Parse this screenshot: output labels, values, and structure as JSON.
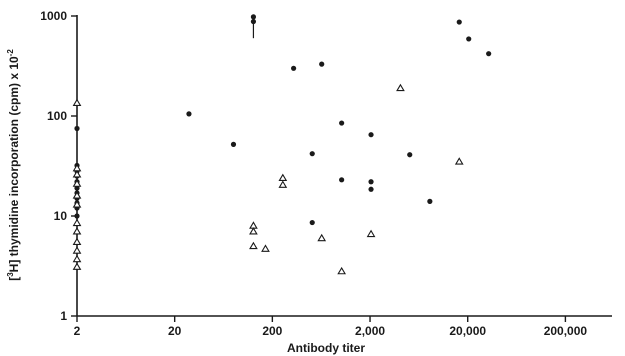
{
  "chart_data": {
    "type": "scatter",
    "title": "",
    "xlabel": "Antibody titer",
    "ylabel_prefix": "[",
    "ylabel_sup": "3",
    "ylabel_sym": "H",
    "ylabel_main": "] thymidine incorporation (cpm) x 10",
    "ylabel_exp": "-2",
    "x_scale": "log",
    "y_scale": "log",
    "xlim": [
      2,
      600000
    ],
    "ylim": [
      1,
      1000
    ],
    "x_ticks": [
      {
        "value": 2,
        "label": "2"
      },
      {
        "value": 20,
        "label": "20"
      },
      {
        "value": 200,
        "label": "200"
      },
      {
        "value": 2000,
        "label": "2,000"
      },
      {
        "value": 20000,
        "label": "20,000"
      },
      {
        "value": 200000,
        "label": "200,000"
      }
    ],
    "y_ticks": [
      {
        "value": 1,
        "label": "1"
      },
      {
        "value": 10,
        "label": "10"
      },
      {
        "value": 100,
        "label": "100"
      },
      {
        "value": 1000,
        "label": "1000"
      }
    ],
    "grid": false,
    "legend": "none",
    "series": [
      {
        "marker": "filled-circle",
        "color": "#1a1a1a",
        "points": [
          {
            "x": 2,
            "y": 75
          },
          {
            "x": 2,
            "y": 32
          },
          {
            "x": 2,
            "y": 28
          },
          {
            "x": 2,
            "y": 25
          },
          {
            "x": 2,
            "y": 22
          },
          {
            "x": 2,
            "y": 19
          },
          {
            "x": 2,
            "y": 17
          },
          {
            "x": 2,
            "y": 15
          },
          {
            "x": 2,
            "y": 13.5
          },
          {
            "x": 2,
            "y": 12
          },
          {
            "x": 2,
            "y": 10
          },
          {
            "x": 28,
            "y": 105
          },
          {
            "x": 80,
            "y": 52
          },
          {
            "x": 128,
            "y": 980
          },
          {
            "x": 128,
            "y": 880
          },
          {
            "x": 330,
            "y": 300
          },
          {
            "x": 640,
            "y": 330
          },
          {
            "x": 512,
            "y": 42
          },
          {
            "x": 512,
            "y": 8.6
          },
          {
            "x": 1024,
            "y": 85
          },
          {
            "x": 1024,
            "y": 23
          },
          {
            "x": 2048,
            "y": 65
          },
          {
            "x": 2048,
            "y": 22
          },
          {
            "x": 2048,
            "y": 18.5
          },
          {
            "x": 5100,
            "y": 41
          },
          {
            "x": 8192,
            "y": 14
          },
          {
            "x": 16384,
            "y": 870
          },
          {
            "x": 20480,
            "y": 590
          },
          {
            "x": 32768,
            "y": 420
          }
        ]
      },
      {
        "marker": "open-triangle",
        "color": "#1a1a1a",
        "points": [
          {
            "x": 2,
            "y": 135
          },
          {
            "x": 2,
            "y": 30
          },
          {
            "x": 2,
            "y": 26
          },
          {
            "x": 2,
            "y": 21
          },
          {
            "x": 2,
            "y": 16
          },
          {
            "x": 2,
            "y": 13
          },
          {
            "x": 2,
            "y": 8.5
          },
          {
            "x": 2,
            "y": 7
          },
          {
            "x": 2,
            "y": 5.5
          },
          {
            "x": 2,
            "y": 4.5
          },
          {
            "x": 2,
            "y": 3.7
          },
          {
            "x": 2,
            "y": 3.1
          },
          {
            "x": 128,
            "y": 8
          },
          {
            "x": 128,
            "y": 7
          },
          {
            "x": 128,
            "y": 5
          },
          {
            "x": 170,
            "y": 4.7
          },
          {
            "x": 256,
            "y": 24
          },
          {
            "x": 256,
            "y": 20.5
          },
          {
            "x": 640,
            "y": 6
          },
          {
            "x": 1024,
            "y": 2.8
          },
          {
            "x": 2048,
            "y": 6.6
          },
          {
            "x": 4096,
            "y": 190
          },
          {
            "x": 16384,
            "y": 35
          }
        ]
      }
    ]
  }
}
